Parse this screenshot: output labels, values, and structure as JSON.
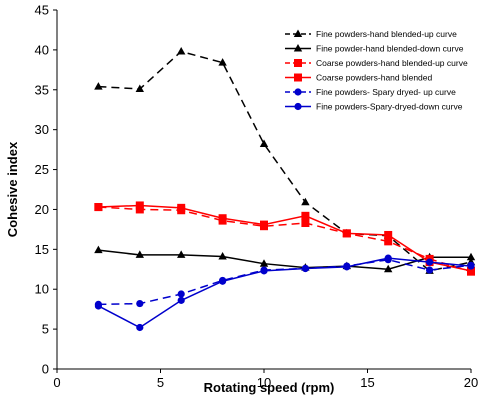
{
  "chart_data": {
    "type": "line",
    "xlabel": "Rotating speed (rpm)",
    "ylabel": "Cohesive index",
    "xlim": [
      0,
      20
    ],
    "ylim": [
      0,
      45
    ],
    "xticks": [
      "0",
      "5",
      "10",
      "15",
      "20"
    ],
    "yticks": [
      "0",
      "5",
      "10",
      "15",
      "20",
      "25",
      "30",
      "35",
      "40",
      "45"
    ],
    "grid": false,
    "legend_position": "top-right",
    "series": [
      {
        "name": "Fine powders-hand blended-up curve",
        "color": "#000000",
        "dashed": true,
        "marker": "triangle",
        "x": [
          2,
          4,
          6,
          8,
          10,
          12,
          14,
          16,
          18,
          20
        ],
        "y": [
          35.4,
          35.1,
          39.8,
          38.4,
          28.2,
          20.9,
          17.0,
          16.7,
          12.3,
          13.4
        ]
      },
      {
        "name": "Fine powder-hand blended-down curve",
        "color": "#000000",
        "dashed": false,
        "marker": "triangle",
        "x": [
          2,
          4,
          6,
          8,
          10,
          12,
          14,
          16,
          18,
          20
        ],
        "y": [
          14.9,
          14.3,
          14.3,
          14.1,
          13.2,
          12.7,
          12.9,
          12.5,
          14.0,
          14.0
        ]
      },
      {
        "name": "Coarse powders-hand blended-up curve",
        "color": "#ff0000",
        "dashed": true,
        "marker": "square",
        "x": [
          2,
          4,
          6,
          8,
          10,
          12,
          14,
          16,
          18,
          20
        ],
        "y": [
          20.3,
          20.0,
          19.9,
          18.6,
          17.9,
          18.3,
          17.0,
          16.0,
          13.8,
          12.2
        ]
      },
      {
        "name": "Coarse powders-hand blended",
        "color": "#ff0000",
        "dashed": false,
        "marker": "square",
        "x": [
          2,
          4,
          6,
          8,
          10,
          12,
          14,
          16,
          18,
          20
        ],
        "y": [
          20.3,
          20.5,
          20.2,
          18.9,
          18.1,
          19.2,
          17.0,
          16.8,
          13.4,
          12.3
        ]
      },
      {
        "name": "Fine powders- Spary dryed- up curve",
        "color": "#0000cc",
        "dashed": true,
        "marker": "circle",
        "x": [
          2,
          4,
          6,
          8,
          10,
          12,
          14,
          16,
          18,
          20
        ],
        "y": [
          8.1,
          8.2,
          9.4,
          11.1,
          12.4,
          12.6,
          12.9,
          13.7,
          12.4,
          13.0
        ]
      },
      {
        "name": "Fine powders-Spary-dryed-down curve",
        "color": "#0000cc",
        "dashed": false,
        "marker": "circle",
        "x": [
          2,
          4,
          6,
          8,
          10,
          12,
          14,
          16,
          18,
          20
        ],
        "y": [
          7.9,
          5.2,
          8.6,
          11.0,
          12.3,
          12.6,
          12.8,
          13.9,
          13.4,
          12.9
        ]
      }
    ]
  }
}
